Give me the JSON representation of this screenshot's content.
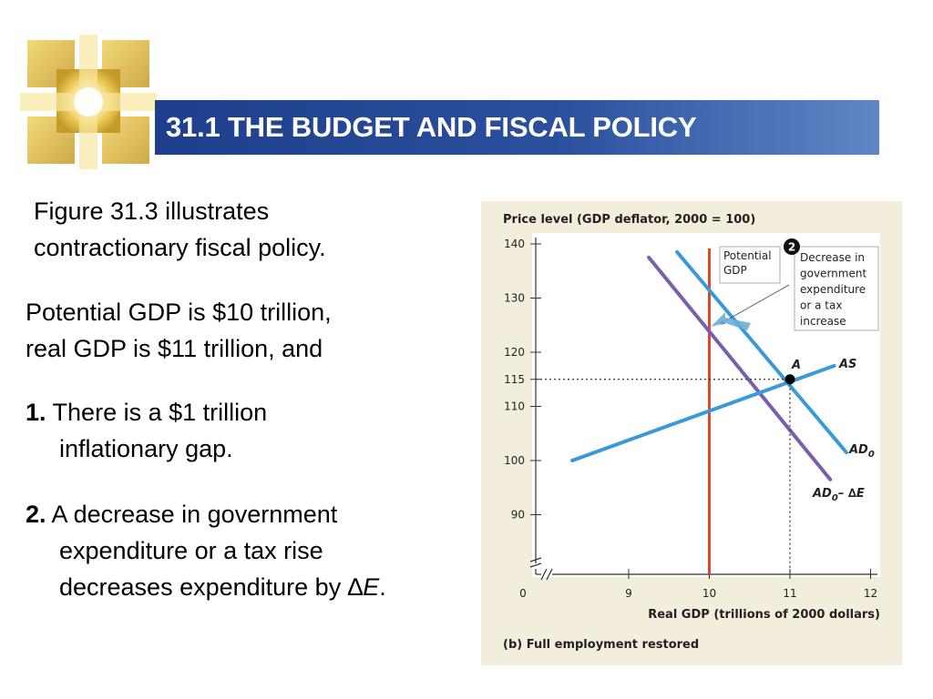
{
  "slide": {
    "title": "31.1 THE BUDGET AND FISCAL POLICY",
    "paragraphs": {
      "intro_line1": "Figure 31.3 illustrates",
      "intro_line2": "contractionary fiscal policy.",
      "gdp_line1": "Potential GDP is $10 trillion,",
      "gdp_line2": "real GDP is $11 trillion, and",
      "point1_num": "1.",
      "point1_line1": "There is a $1 trillion",
      "point1_line2": "inflationary gap.",
      "point2_num": "2.",
      "point2_line1": "A decrease in government",
      "point2_line2": "expenditure or a tax rise",
      "point2_line3_prefix": "decreases expenditure by ",
      "point2_delta": "∆",
      "point2_e": "E",
      "point2_end": "."
    }
  },
  "colors": {
    "title_bar": "#2a4f9c",
    "chart_background": "#f3eedc",
    "as_line": "#3a9ad9",
    "ad0_line": "#3a9ad9",
    "ad_shift_line": "#7a5fae",
    "potential_gdp_line": "#e0452e",
    "arrow": "#6aaed8"
  },
  "chart_data": {
    "type": "line",
    "title": "Price level (GDP deflator, 2000 = 100)",
    "xlabel": "Real GDP (trillions of 2000 dollars)",
    "caption": "(b) Full employment restored",
    "x_axis_break": true,
    "y_axis_break": true,
    "xticks": [
      {
        "value": 0,
        "label": "0"
      },
      {
        "value": 9,
        "label": "9"
      },
      {
        "value": 10,
        "label": "10"
      },
      {
        "value": 11,
        "label": "11"
      },
      {
        "value": 12,
        "label": "12"
      }
    ],
    "yticks": [
      {
        "value": 90,
        "label": "90"
      },
      {
        "value": 100,
        "label": "100"
      },
      {
        "value": 110,
        "label": "110"
      },
      {
        "value": 115,
        "label": "115"
      },
      {
        "value": 120,
        "label": "120"
      },
      {
        "value": 130,
        "label": "130"
      },
      {
        "value": 140,
        "label": "140"
      }
    ],
    "xlim": [
      8.1,
      12.1
    ],
    "ylim": [
      80,
      141
    ],
    "series": [
      {
        "id": "as",
        "name": "AS",
        "points": [
          [
            8.3,
            100
          ],
          [
            11.55,
            117.5
          ]
        ]
      },
      {
        "id": "ad0",
        "name": "AD",
        "name_sub": "0",
        "points": [
          [
            9.6,
            138.5
          ],
          [
            11.7,
            101.5
          ]
        ]
      },
      {
        "id": "ad_shift",
        "name": "AD",
        "name_sub": "0",
        "name_suffix": "– ∆E",
        "points": [
          [
            9.25,
            137.5
          ],
          [
            11.5,
            96.5
          ]
        ]
      },
      {
        "id": "potential",
        "name": "Potential GDP",
        "vertical_x": 10
      }
    ],
    "equilibrium": {
      "label": "A",
      "x": 11,
      "y": 115
    },
    "annotations": {
      "potential_label_lines": [
        "Potential",
        "GDP"
      ],
      "marker_number": "2",
      "shift_label_lines": [
        "Decrease in",
        "government",
        "expenditure",
        "or a tax",
        "increase"
      ]
    }
  }
}
